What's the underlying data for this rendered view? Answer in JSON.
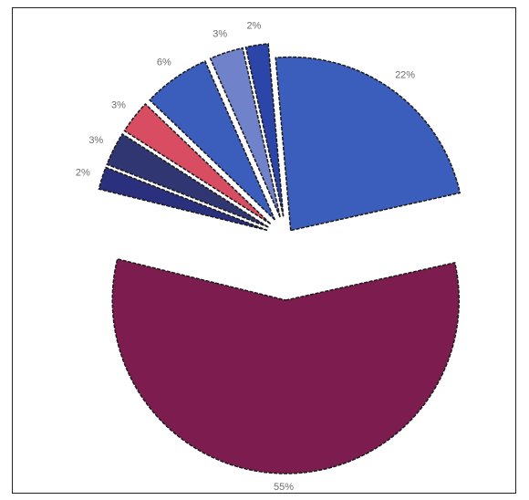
{
  "chart_data": {
    "type": "pie",
    "title": "",
    "exploded": true,
    "slices": [
      {
        "label": "22%",
        "value": 22,
        "color": "#3b5dbb"
      },
      {
        "label": "55%",
        "value": 55,
        "color": "#7d1d4f"
      },
      {
        "label": "2%",
        "value": 2,
        "color": "#2a2f7e"
      },
      {
        "label": "3%",
        "value": 3,
        "color": "#2f3672"
      },
      {
        "label": "3%",
        "value": 3,
        "color": "#d94d63"
      },
      {
        "label": "6%",
        "value": 6,
        "color": "#3b5dbb"
      },
      {
        "label": "3%",
        "value": 3,
        "color": "#7082c9"
      },
      {
        "label": "2%",
        "value": 2,
        "color": "#2b46a8"
      }
    ],
    "colors": {
      "frame_border": "#222222",
      "slice_outline": "#1a1a1a",
      "slice_highlight": "#f5dada",
      "label_text": "#6d6d6d"
    }
  }
}
